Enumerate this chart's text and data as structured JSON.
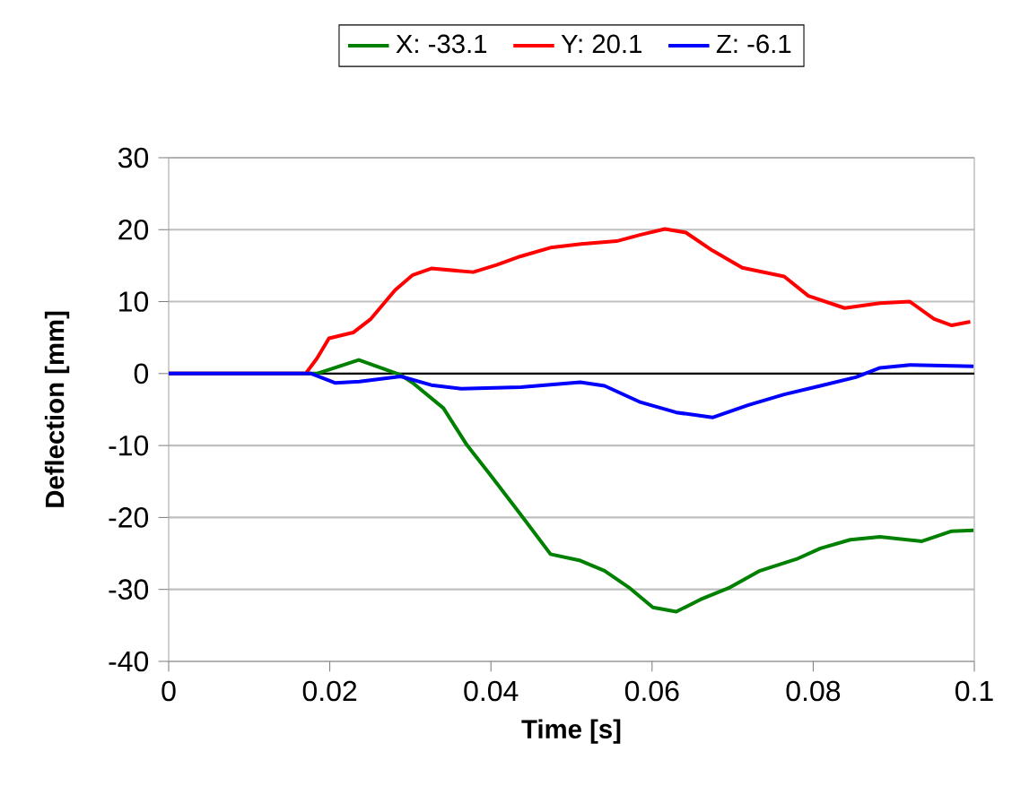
{
  "chart_data": {
    "type": "line",
    "xlabel": "Time [s]",
    "ylabel": "Deflection [mm]",
    "xlim": [
      0,
      0.1
    ],
    "ylim": [
      -40,
      30
    ],
    "xticks": [
      0,
      0.02,
      0.04,
      0.06,
      0.08,
      0.1
    ],
    "yticks": [
      -40,
      -30,
      -20,
      -10,
      0,
      10,
      20,
      30
    ],
    "grid": "y",
    "legend": "top",
    "marker": "none",
    "line_style": "solid",
    "series": [
      {
        "name": "X: -33.1",
        "color": "#008000",
        "x": [
          0,
          0.0184,
          0.0236,
          0.0288,
          0.0303,
          0.0341,
          0.037,
          0.04,
          0.0437,
          0.0474,
          0.0511,
          0.0541,
          0.0571,
          0.0601,
          0.063,
          0.066,
          0.0697,
          0.0734,
          0.0779,
          0.0809,
          0.0846,
          0.0883,
          0.0935,
          0.0972,
          0.0999
        ],
        "values": [
          0,
          0,
          1.9,
          -0.2,
          -1.3,
          -4.8,
          -9.9,
          -14.2,
          -19.6,
          -25.1,
          -26,
          -27.4,
          -29.7,
          -32.5,
          -33.1,
          -31.4,
          -29.7,
          -27.4,
          -25.8,
          -24.3,
          -23.1,
          -22.7,
          -23.3,
          -21.9,
          -21.8
        ]
      },
      {
        "name": "Y: 20.1",
        "color": "#ff0000",
        "x": [
          0,
          0.017,
          0.0184,
          0.0199,
          0.0229,
          0.0251,
          0.0281,
          0.0303,
          0.0326,
          0.0378,
          0.0407,
          0.0437,
          0.0474,
          0.0512,
          0.0556,
          0.0586,
          0.0616,
          0.0642,
          0.0675,
          0.0712,
          0.0764,
          0.0794,
          0.0839,
          0.0883,
          0.092,
          0.095,
          0.0972,
          0.0995
        ],
        "values": [
          0,
          0,
          2.1,
          4.9,
          5.7,
          7.6,
          11.6,
          13.7,
          14.6,
          14.1,
          15.1,
          16.3,
          17.5,
          18,
          18.4,
          19.3,
          20.1,
          19.6,
          17.1,
          14.7,
          13.5,
          10.8,
          9.1,
          9.8,
          10,
          7.6,
          6.7,
          7.2
        ]
      },
      {
        "name": "Z:  -6.1",
        "color": "#0000ff",
        "x": [
          0,
          0.0177,
          0.0207,
          0.0237,
          0.0288,
          0.0326,
          0.0363,
          0.0437,
          0.0511,
          0.0541,
          0.0586,
          0.063,
          0.0675,
          0.0719,
          0.0764,
          0.0809,
          0.0853,
          0.0883,
          0.092,
          0.0999
        ],
        "values": [
          0,
          0,
          -1.3,
          -1.1,
          -0.4,
          -1.6,
          -2.1,
          -1.9,
          -1.2,
          -1.7,
          -4,
          -5.4,
          -6.1,
          -4.4,
          -2.9,
          -1.7,
          -0.5,
          0.8,
          1.2,
          1
        ]
      }
    ]
  }
}
